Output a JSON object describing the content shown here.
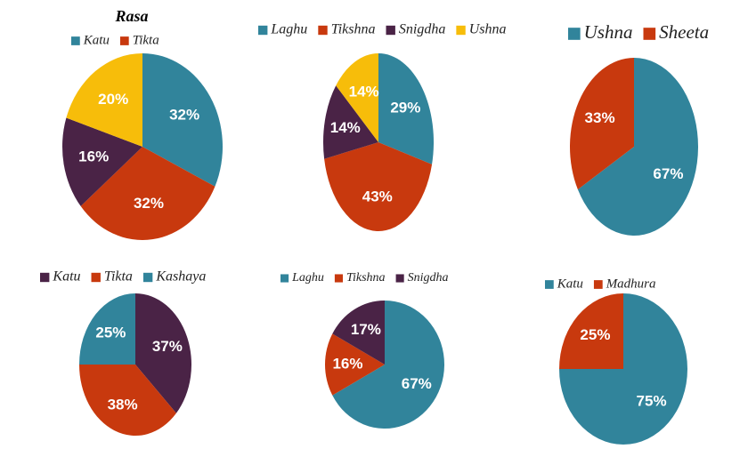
{
  "chart_data": [
    {
      "type": "pie",
      "title": "Rasa",
      "categories": [
        "Katu",
        "Tikta",
        null,
        null
      ],
      "values": [
        32,
        32,
        16,
        20
      ],
      "value_labels": [
        "32%",
        "32%",
        "16%",
        "20%"
      ],
      "colors": [
        "#31849b",
        "#c8390e",
        "#4a2346",
        "#f7bd0a"
      ]
    },
    {
      "type": "pie",
      "categories": [
        "Laghu",
        "Tikshna",
        "Snigdha",
        "Ushna"
      ],
      "values": [
        29,
        43,
        14,
        14
      ],
      "value_labels": [
        "29%",
        "43%",
        "14%",
        "14%"
      ],
      "colors": [
        "#31849b",
        "#c8390e",
        "#4a2346",
        "#f7bd0a"
      ]
    },
    {
      "type": "pie",
      "categories": [
        "Ushna",
        "Sheeta"
      ],
      "values": [
        67,
        33
      ],
      "value_labels": [
        "67%",
        "33%"
      ],
      "colors": [
        "#31849b",
        "#c8390e"
      ]
    },
    {
      "type": "pie",
      "categories": [
        "Katu",
        "Tikta",
        "Kashaya"
      ],
      "values": [
        37,
        38,
        25
      ],
      "value_labels": [
        "37%",
        "38%",
        "25%"
      ],
      "colors": [
        "#4a2346",
        "#c8390e",
        "#31849b"
      ]
    },
    {
      "type": "pie",
      "categories": [
        "Laghu",
        "Tikshna",
        "Snigdha"
      ],
      "values": [
        67,
        16,
        17
      ],
      "value_labels": [
        "67%",
        "16%",
        "17%"
      ],
      "colors": [
        "#31849b",
        "#c8390e",
        "#4a2346"
      ]
    },
    {
      "type": "pie",
      "categories": [
        "Katu",
        "Madhura"
      ],
      "values": [
        75,
        25
      ],
      "value_labels": [
        "75%",
        "25%"
      ],
      "colors": [
        "#31849b",
        "#c8390e"
      ]
    }
  ]
}
